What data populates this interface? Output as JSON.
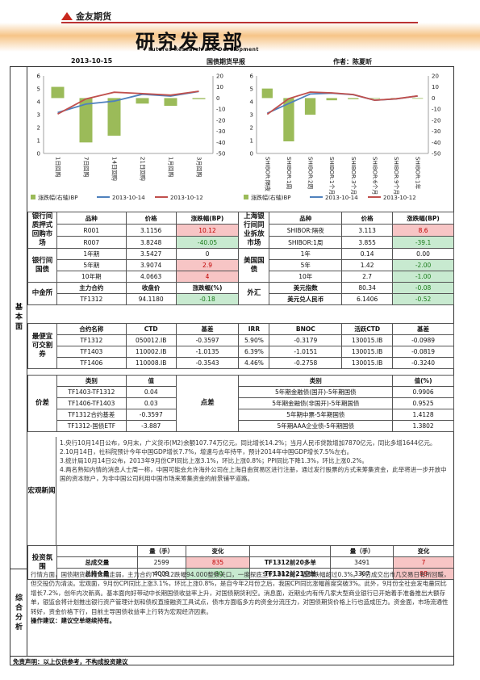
{
  "header": {
    "brand": "金友期货",
    "title": "研究发展部",
    "title_en": "Futures Research and Development",
    "date": "2013-10-15",
    "report_name": "国债期货早报",
    "author_label": "作者：陈夏昕"
  },
  "sides": {
    "basic": "基本面",
    "summary": "综合分析"
  },
  "chart_data": [
    {
      "type": "bar+line",
      "categories": [
        "1日回购",
        "7日回购",
        "14日回购",
        "21日回购",
        "1月回购",
        "3月回购"
      ],
      "series": [
        {
          "name": "涨跌幅(右轴)BP",
          "kind": "bar",
          "axis": "right",
          "values": [
            10.12,
            -40.05,
            -34,
            -5,
            -7,
            -1
          ]
        },
        {
          "name": "2013-10-14",
          "kind": "line",
          "axis": "left",
          "values": [
            3.16,
            3.82,
            4.05,
            4.58,
            4.44,
            4.8
          ]
        },
        {
          "name": "2013-10-12",
          "kind": "line",
          "axis": "left",
          "values": [
            3.05,
            4.22,
            4.74,
            4.63,
            4.51,
            4.81
          ]
        }
      ],
      "ylim_left": [
        0,
        6
      ],
      "yticks_left": [
        0,
        1,
        2,
        3,
        4,
        5,
        6
      ],
      "ylim_right": [
        -50,
        20
      ],
      "yticks_right": [
        -50,
        -40,
        -30,
        -20,
        -10,
        0,
        10,
        20
      ],
      "legend_position": "bottom"
    },
    {
      "type": "bar+line",
      "categories": [
        "SHIBOR:隔夜",
        "SHIBOR:1周",
        "SHIBOR:2周",
        "SHIBOR:1个月",
        "SHIBOR:3个月",
        "SHIBOR:6个月",
        "SHIBOR:9个月",
        "SHIBOR:1年"
      ],
      "series": [
        {
          "name": "涨跌幅(右轴)BP",
          "kind": "bar",
          "axis": "right",
          "values": [
            8.6,
            -39.1,
            -15,
            -2,
            -1,
            0,
            0,
            0
          ]
        },
        {
          "name": "2013-10-14",
          "kind": "line",
          "axis": "left",
          "values": [
            3.11,
            3.86,
            4.6,
            4.67,
            4.55,
            4.12,
            4.22,
            4.45
          ]
        },
        {
          "name": "2013-10-12",
          "kind": "line",
          "axis": "left",
          "values": [
            3.03,
            4.24,
            4.75,
            4.69,
            4.56,
            4.12,
            4.23,
            4.45
          ]
        }
      ],
      "ylim_left": [
        0,
        6
      ],
      "yticks_left": [
        0,
        1,
        2,
        3,
        4,
        5,
        6
      ],
      "ylim_right": [
        -50,
        20
      ],
      "yticks_right": [
        -50,
        -40,
        -30,
        -20,
        -10,
        0,
        10,
        20
      ],
      "legend_position": "bottom"
    }
  ],
  "legend": {
    "bar": "涨跌幅(右轴)BP",
    "l1": "2013-10-14",
    "l2": "2013-10-12"
  },
  "colors": {
    "bar": "#9bbb59",
    "line1": "#4f81bd",
    "line2": "#c0504d",
    "up_bg": "#f7c5c5",
    "down_bg": "#c8ead0"
  },
  "rates": {
    "sec_repo": "银行间质押式回购市场",
    "sec_shibor": "上海银行间同业拆放市场",
    "h": [
      "品种",
      "价格",
      "涨跌幅(BP)"
    ],
    "repo": [
      [
        "R001",
        "3.1156",
        "10.12"
      ],
      [
        "R007",
        "3.8248",
        "-40.05"
      ]
    ],
    "shibor": [
      [
        "SHIBOR:隔夜",
        "3.113",
        "8.6"
      ],
      [
        "SHIBOR:1周",
        "3.855",
        "-39.1"
      ]
    ],
    "sec_cgb": "银行间国债",
    "sec_ust": "美国国债",
    "cgb": [
      [
        "1年期",
        "3.5427",
        "0"
      ],
      [
        "5年期",
        "3.9074",
        "2.9"
      ],
      [
        "10年期",
        "4.0663",
        "4"
      ]
    ],
    "ust": [
      [
        "1年",
        "0.14",
        "0.00"
      ],
      [
        "5年",
        "1.42",
        "-2.00"
      ],
      [
        "10年",
        "2.7",
        "-1.00"
      ]
    ]
  },
  "cffex": {
    "sec": "中金所",
    "sec_fx": "外汇",
    "h": [
      "主力合约",
      "收盘价",
      "涨跌幅(%)"
    ],
    "row": [
      "TF1312",
      "94.1180",
      "-0.18"
    ],
    "fx": [
      [
        "美元指数",
        "80.34",
        "-0.08"
      ],
      [
        "美元兑人民币",
        "6.1406",
        "-0.52"
      ]
    ]
  },
  "ctd": {
    "sec": "最便宜可交割券",
    "h": [
      "合约名称",
      "CTD",
      "基差",
      "IRR",
      "BNOC",
      "活跃CTD",
      "基差"
    ],
    "rows": [
      [
        "TF1312",
        "050012.IB",
        "-0.3597",
        "5.90%",
        "-0.3179",
        "130015.IB",
        "-0.0989"
      ],
      [
        "TF1403",
        "110002.IB",
        "-1.0135",
        "6.39%",
        "-1.0151",
        "130015.IB",
        "-0.0819"
      ],
      [
        "TF1406",
        "110008.IB",
        "-0.3543",
        "4.46%",
        "-0.2758",
        "130015.IB",
        "-0.3240"
      ]
    ]
  },
  "spread": {
    "sec": "价差",
    "sec_pts": "点差",
    "h": [
      "类别",
      "值",
      "类别",
      "值(%)"
    ],
    "left": [
      [
        "TF1403-TF1312",
        "0.04"
      ],
      [
        "TF1406-TF1403",
        "0.03"
      ],
      [
        "TF1312合约基差",
        "-0.3597"
      ],
      [
        "TF1312-国债ETF",
        "-3.887"
      ]
    ],
    "right": [
      [
        "5年期金融债(国开)-5年期国债",
        "0.9906"
      ],
      [
        "5年期金融债(非国开)-5年期国债",
        "0.9525"
      ],
      [
        "5年期中票-5年期国债",
        "1.4128"
      ],
      [
        "5年期AAA企业债-5年期国债",
        "1.3802"
      ]
    ]
  },
  "news": {
    "sec": "宏观新闻",
    "items": [
      "1.央行10月14日公布，9月末，广义货币(M2)余额107.74万亿元，同比增长14.2%；当月人民币贷款增加7870亿元，同比多增1644亿元。",
      "2.10月14日，社科院预计今年中国GDP增长7.7%，增速与去年持平，预计2014年中国GDP增长7.5%左右。",
      "3.统计局10月14日公布，2013年9月份CPI同比上涨3.1%，环比上涨0.8%；PPI同比下降1.3%，环比上涨0.2%。",
      "4.两名熟知内情的消息人士周一称，中国可能会允许海外公司在上海自由贸易区进行注册，通过发行股票的方式来筹集资金，此举将进一步开放中国的资本账户，为非中国公司利用中国市场来筹集资金的前景铺平道路。"
    ]
  },
  "sentiment": {
    "sec": "投资氛围",
    "h": [
      "量（手）",
      "变化",
      "量（手）",
      "变化"
    ],
    "rows": [
      [
        "总成交量",
        "2599",
        "835",
        "TF1312前20多单",
        "3491",
        "7"
      ],
      [
        "总持仓量",
        "4009",
        "-30",
        "TF1312前21空单",
        "3307",
        "98"
      ]
    ]
  },
  "summary": {
    "text": "行情方面，国债期货价格大幅走弱，主力合约TF1312跌幅94.000整数关口，一度探底至93.982元，最高跌幅超过0.3%。今日成交出市几交易日有所回暖，但交投仍为清淡。宏观面，9月份CPI同比上涨3.1%，环比上涨0.8%，是自今年2月份之后，我国CPI同比涨幅首度突破3%。此外，9月份全社会发电量同比增长7.2%，创年内次新高。基本面向好带动中长期国债收益率上升，对国债期货利空。消息面，近期业内有传几家大型商业银行已开始着手准备推出大额存单，银监会将计划推出银行资产管理计划和债权直接融资工具试点，债市方面临多方的资金分流压力，对国债期货价格上行也造成压力。资金面，市场流通性转好，资金价格下行，目前主导国债收益率上行转为宏观经济因素。",
    "op": "操作建议：建议空单继续持有。"
  },
  "footer": "免责声明：以上仅供参考，不构成投资建议"
}
